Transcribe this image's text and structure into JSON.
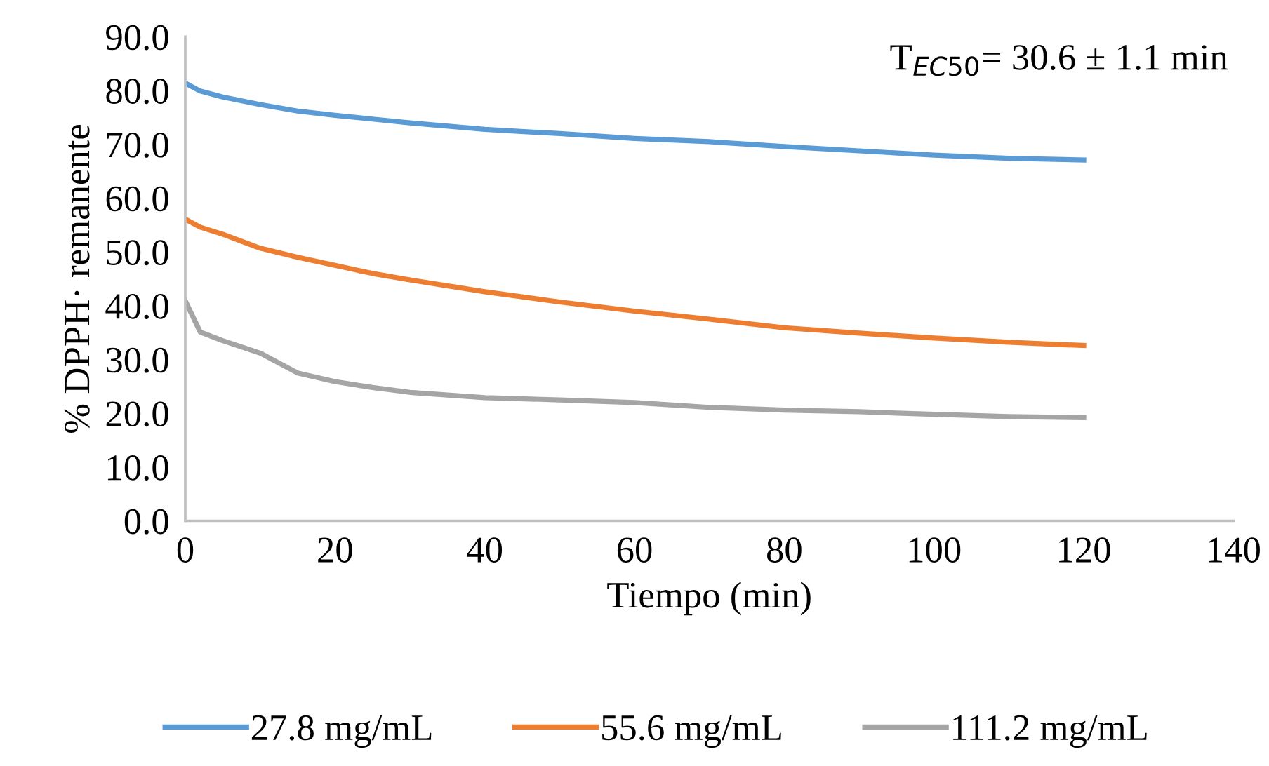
{
  "chart_data": {
    "type": "line",
    "xlabel": "Tiempo (min)",
    "ylabel": "% DPPH· remanente",
    "annotations": [
      "T$_{EC50}$= 30.6 ± 1.1 min"
    ],
    "x": [
      0,
      2,
      5,
      10,
      15,
      20,
      25,
      30,
      40,
      50,
      60,
      70,
      80,
      90,
      100,
      110,
      120
    ],
    "series": [
      {
        "name": "27.8 mg/mL",
        "color": "#5b9bd5",
        "values": [
          81.4,
          79.9,
          78.8,
          77.4,
          76.2,
          75.4,
          74.7,
          74.0,
          72.8,
          72.0,
          71.1,
          70.5,
          69.6,
          68.8,
          68.0,
          67.4,
          67.1
        ]
      },
      {
        "name": "55.6 mg/mL",
        "color": "#ed7d31",
        "values": [
          56.1,
          54.6,
          53.3,
          50.7,
          49.0,
          47.5,
          46.0,
          44.8,
          42.6,
          40.7,
          39.0,
          37.5,
          35.9,
          34.9,
          34.0,
          33.2,
          32.6
        ]
      },
      {
        "name": "111.2 mg/mL",
        "color": "#a5a5a5",
        "values": [
          40.9,
          35.1,
          33.5,
          31.2,
          27.5,
          25.9,
          24.8,
          23.9,
          22.9,
          22.5,
          22.0,
          21.1,
          20.6,
          20.3,
          19.8,
          19.4,
          19.2
        ]
      }
    ],
    "xlim": [
      0,
      140
    ],
    "xticks": [
      0,
      20,
      40,
      60,
      80,
      100,
      120,
      140
    ],
    "ylim": [
      0,
      90
    ],
    "yticks": [
      {
        "value": 0,
        "label": "0.0"
      },
      {
        "value": 10,
        "label": "10.0"
      },
      {
        "value": 20,
        "label": "20.0"
      },
      {
        "value": 30,
        "label": "30.0"
      },
      {
        "value": 40,
        "label": "40.0"
      },
      {
        "value": 50,
        "label": "50.0"
      },
      {
        "value": 60,
        "label": "60.0"
      },
      {
        "value": 70,
        "label": "70.0"
      },
      {
        "value": 80,
        "label": "80.0"
      },
      {
        "value": 90,
        "label": "90.0"
      }
    ],
    "grid": false,
    "legend": "bottom",
    "marker": "none",
    "line_style": "solid"
  }
}
